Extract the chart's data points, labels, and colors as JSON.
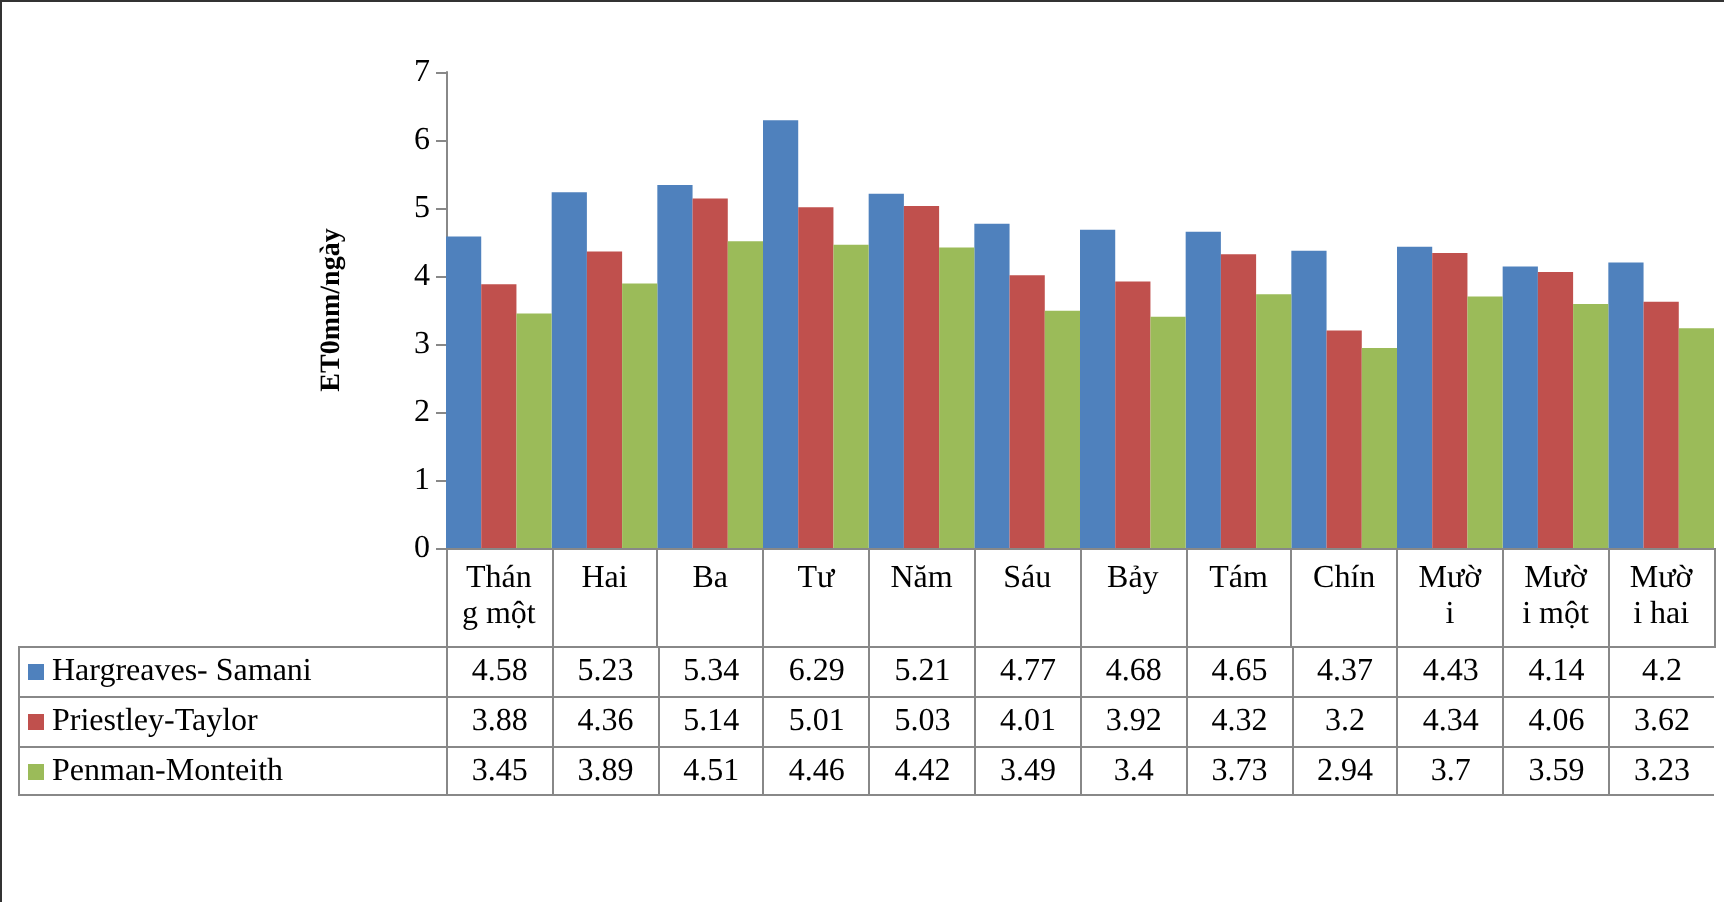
{
  "chart_data": {
    "type": "bar",
    "ylabel": "ET0mm/ngày",
    "categories": [
      "Tháng một",
      "Hai",
      "Ba",
      "Tư",
      "Năm",
      "Sáu",
      "Bảy",
      "Tám",
      "Chín",
      "Mười",
      "Mười một",
      "Mười hai"
    ],
    "series": [
      {
        "name": "Hargreaves- Samani",
        "color": "#4f81bd",
        "values": [
          4.58,
          5.23,
          5.34,
          6.29,
          5.21,
          4.77,
          4.68,
          4.65,
          4.37,
          4.43,
          4.14,
          4.2
        ]
      },
      {
        "name": "Priestley-Taylor",
        "color": "#c0504d",
        "values": [
          3.88,
          4.36,
          5.14,
          5.01,
          5.03,
          4.01,
          3.92,
          4.32,
          3.2,
          4.34,
          4.06,
          3.62
        ]
      },
      {
        "name": "Penman-Monteith",
        "color": "#9bbb59",
        "values": [
          3.45,
          3.89,
          4.51,
          4.46,
          4.42,
          3.49,
          3.4,
          3.73,
          2.94,
          3.7,
          3.59,
          3.23
        ]
      }
    ],
    "ylim": [
      0,
      7
    ],
    "yticks": [
      0,
      1,
      2,
      3,
      4,
      5,
      6,
      7
    ],
    "grid": false,
    "legend": "bottom",
    "data_labels": true
  }
}
